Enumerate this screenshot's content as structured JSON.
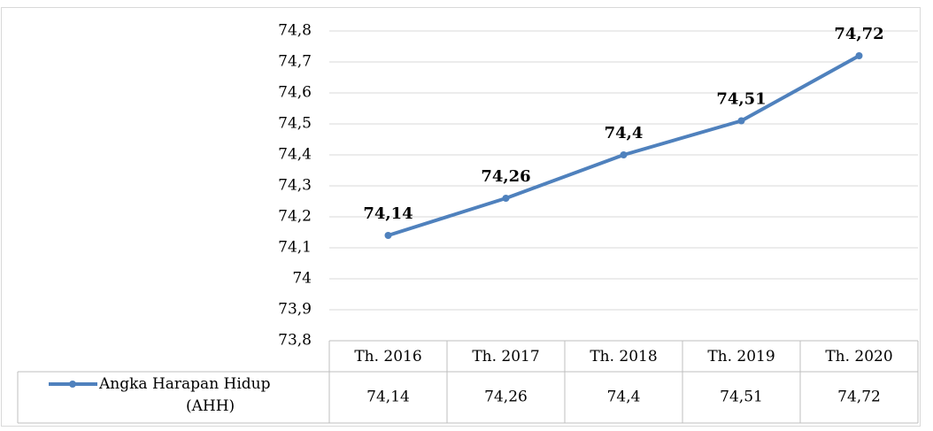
{
  "chart_data": {
    "type": "line",
    "categories": [
      "Th. 2016",
      "Th. 2017",
      "Th. 2018",
      "Th. 2019",
      "Th. 2020"
    ],
    "series": [
      {
        "name": "Angka Harapan Hidup (AHH)",
        "color": "#4f81bd",
        "values": [
          74.14,
          74.26,
          74.4,
          74.51,
          74.72
        ],
        "value_labels": [
          "74,14",
          "74,26",
          "74,4",
          "74,51",
          "74,72"
        ]
      }
    ],
    "ylim": [
      73.8,
      74.8
    ],
    "yticks": [
      {
        "value": 73.8,
        "label": "73,8"
      },
      {
        "value": 73.9,
        "label": "73,9"
      },
      74,
      {
        "value": 74.1,
        "label": "74,1"
      },
      {
        "value": 74.2,
        "label": "74,2"
      },
      {
        "value": 74.3,
        "label": "74,3"
      },
      {
        "value": 74.4,
        "label": "74,4"
      },
      {
        "value": 74.5,
        "label": "74,5"
      },
      {
        "value": 74.6,
        "label": "74,6"
      },
      {
        "value": 74.7,
        "label": "74,7"
      },
      {
        "value": 74.8,
        "label": "74,8"
      }
    ],
    "grid": true,
    "legend": "bottom-left",
    "data_table": true
  }
}
